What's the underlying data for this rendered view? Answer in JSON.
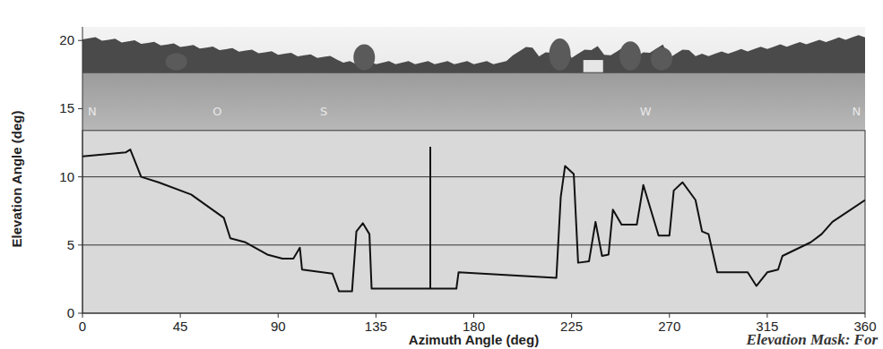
{
  "chart_data": {
    "type": "line",
    "x_label": "Azimuth Angle (deg)",
    "y_label": "Elevation Angle (deg)",
    "caption": "Elevation Mask: For",
    "x": [
      0,
      20,
      22,
      27,
      35,
      50,
      65,
      68,
      75,
      85,
      92,
      97,
      100,
      101,
      115,
      118,
      124,
      126,
      129,
      132,
      133,
      172,
      173,
      218,
      220,
      222,
      226,
      228,
      233,
      236,
      239,
      242,
      244,
      248,
      255,
      258,
      265,
      270,
      272,
      276,
      282,
      285,
      288,
      292,
      306,
      310,
      315,
      320,
      322,
      335,
      340,
      345,
      360
    ],
    "values": [
      11.5,
      11.8,
      12.0,
      10.0,
      9.6,
      8.7,
      7.0,
      5.5,
      5.2,
      4.3,
      4.0,
      4.0,
      4.8,
      3.2,
      2.9,
      1.6,
      1.6,
      6.0,
      6.6,
      5.8,
      1.8,
      1.8,
      3.0,
      2.6,
      8.5,
      10.8,
      10.2,
      3.7,
      3.8,
      6.7,
      4.2,
      4.3,
      7.6,
      6.5,
      6.5,
      9.4,
      5.7,
      5.7,
      9.0,
      9.6,
      8.3,
      6.0,
      5.8,
      3.0,
      3.0,
      2.0,
      3.0,
      3.2,
      4.2,
      5.2,
      5.8,
      6.7,
      8.3
    ],
    "color": "#111111",
    "line_style": "solid",
    "xlim": [
      0,
      360
    ],
    "xticks": [
      0,
      45,
      90,
      135,
      180,
      225,
      270,
      315,
      360
    ],
    "ylim": [
      0,
      21
    ],
    "yticks": [
      0,
      5,
      10,
      15,
      20
    ],
    "grid": true,
    "mask_panel_top": 13.4,
    "reference_line": {
      "x": 160,
      "ymin": 1.8,
      "ymax": 12.2
    },
    "annotations": [
      {
        "text": "N",
        "x": 4.5,
        "y": 14.5
      },
      {
        "text": "O",
        "x": 62,
        "y": 14.5
      },
      {
        "text": "S",
        "x": 111,
        "y": 14.5
      },
      {
        "text": "W",
        "x": 259,
        "y": 14.5
      },
      {
        "text": "N",
        "x": 356,
        "y": 14.5
      }
    ]
  }
}
